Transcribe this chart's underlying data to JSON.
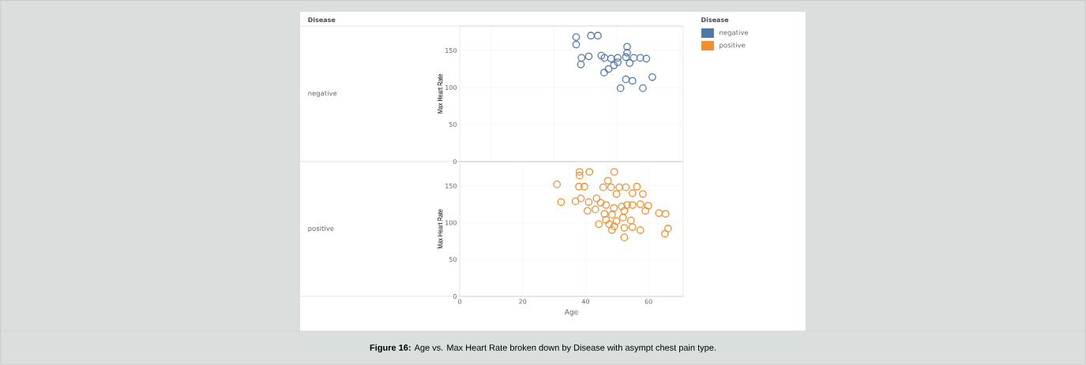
{
  "chart_data": [
    {
      "type": "scatter",
      "ylabel": "Max Heart Rate",
      "xlim": [
        0,
        71
      ],
      "ylim": [
        0,
        183
      ],
      "yticks": [
        0,
        50,
        100,
        150
      ],
      "tick_labels": "y",
      "grid": true,
      "marker": "circle",
      "legend": "top right",
      "legend_title": "Disease",
      "annotations": [
        "Disease"
      ],
      "series": [
        {
          "name": "negative",
          "color": "#4e79a7",
          "x": [
            37.0,
            37.0,
            41.7,
            43.9,
            53.2,
            53.2,
            38.7,
            41.0,
            38.5,
            45.0,
            46.0,
            48.1,
            50.2,
            52.8,
            55.3,
            57.4,
            59.3,
            54.0,
            50.2,
            49.0,
            47.3,
            45.9,
            52.8,
            54.9,
            61.2,
            51.1,
            58.2
          ],
          "values": [
            168,
            158,
            170,
            170,
            155,
            147,
            140,
            142,
            131,
            143,
            140,
            139,
            140,
            141,
            140,
            140,
            139,
            133,
            134,
            130,
            125,
            120,
            111,
            109,
            114,
            99,
            99
          ]
        }
      ]
    },
    {
      "type": "scatter",
      "xlabel": "Age",
      "ylabel": "Max Heart Rate",
      "xlim": [
        0,
        71
      ],
      "ylim": [
        0,
        183
      ],
      "xticks": [
        0,
        20,
        40,
        60
      ],
      "yticks": [
        0,
        50,
        100,
        150
      ],
      "grid": true,
      "marker": "circle",
      "legend": "top right",
      "annotations": [
        "**Figure 16:** Age vs. Max Heart Rate broken down by Disease with asympt chest pain type."
      ],
      "series": [
        {
          "name": "positive",
          "color": "#f28e2b",
          "x": [
            38.1,
            38.1,
            41.2,
            49.1,
            30.9,
            37.9,
            39.6,
            47.1,
            45.6,
            48.1,
            50.7,
            52.8,
            56.3,
            49.8,
            54.9,
            58.2,
            32.2,
            36.8,
            38.5,
            41.0,
            43.5,
            44.8,
            46.5,
            49.0,
            51.5,
            53.2,
            54.9,
            57.4,
            59.9,
            40.6,
            43.1,
            46.0,
            48.4,
            52.3,
            59.0,
            63.3,
            65.4,
            51.9,
            54.4,
            44.2,
            47.5,
            49.1,
            48.4,
            52.3,
            54.9,
            57.4,
            66.2,
            65.2,
            52.3,
            49.8,
            46.5
          ],
          "values": [
            169,
            164,
            169,
            169,
            152,
            149,
            149,
            157,
            148,
            148,
            148,
            148,
            149,
            139,
            140,
            139,
            128,
            129,
            133,
            128,
            133,
            127,
            124,
            120,
            122,
            124,
            124,
            125,
            123,
            116,
            118,
            112,
            111,
            116,
            116,
            113,
            112,
            107,
            103,
            98,
            98,
            95,
            90,
            93,
            94,
            90,
            92,
            85,
            80,
            102,
            104
          ]
        }
      ]
    }
  ]
}
